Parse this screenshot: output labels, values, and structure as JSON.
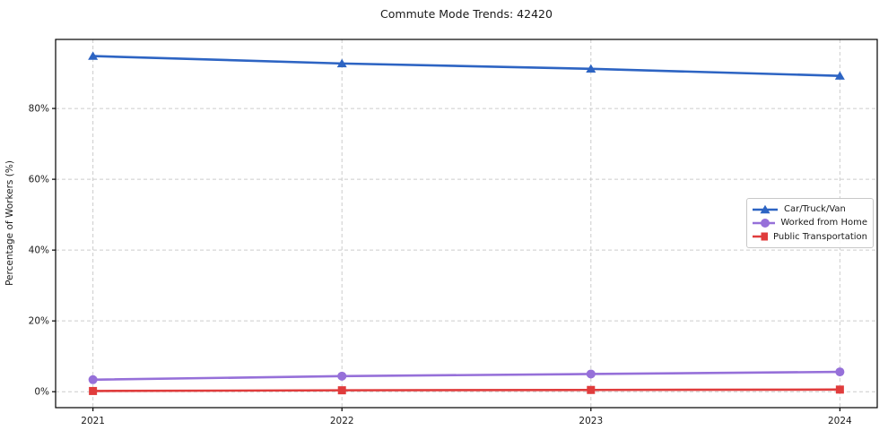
{
  "chart_data": {
    "type": "line",
    "title": "Commute Mode Trends: 42420",
    "xlabel": "",
    "ylabel": "Percentage of Workers (%)",
    "x": [
      2021,
      2022,
      2023,
      2024
    ],
    "x_tick_labels": [
      "2021",
      "2022",
      "2023",
      "2024"
    ],
    "y_ticks": [
      0,
      20,
      40,
      60,
      80
    ],
    "y_tick_labels": [
      "0%",
      "20%",
      "40%",
      "60%",
      "80%"
    ],
    "xlim": [
      2020.85,
      2024.15
    ],
    "ylim": [
      -4.5,
      99.5
    ],
    "grid": true,
    "grid_style": "dashed",
    "legend_position": "center-right",
    "series": [
      {
        "name": "Car/Truck/Van",
        "marker": "triangle",
        "color": "#2d64c3",
        "values": [
          94.8,
          92.7,
          91.2,
          89.2
        ]
      },
      {
        "name": "Worked from Home",
        "marker": "circle",
        "color": "#9670d9",
        "values": [
          3.4,
          4.4,
          5.0,
          5.6
        ]
      },
      {
        "name": "Public Transportation",
        "marker": "square",
        "color": "#e03c3c",
        "values": [
          0.2,
          0.4,
          0.5,
          0.6
        ]
      }
    ]
  },
  "colors": {
    "grid": "#cccccc",
    "axis": "#000000",
    "text": "#1a1a1a",
    "background": "#ffffff"
  }
}
